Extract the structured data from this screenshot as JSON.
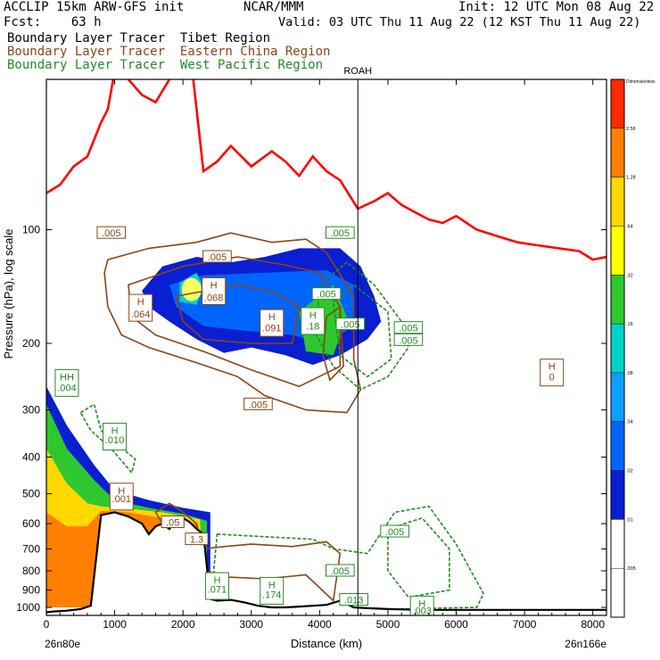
{
  "header": {
    "line1_left": "ACCLIP 15km ARW-GFS init",
    "line1_center": "NCAR/MMM",
    "line1_right": "Init: 12 UTC Mon 08 Aug 22",
    "line2_left": "Fcst:    63 h",
    "line2_right": "Valid: 03 UTC Thu 11 Aug 22 (12 KST Thu 11 Aug 22)",
    "tracers": [
      {
        "label": "Boundary Layer Tracer  Tibet Region",
        "color": "#000000"
      },
      {
        "label": "Boundary Layer Tracer  Eastern China Region",
        "color": "#8B4513"
      },
      {
        "label": "Boundary Layer Tracer  West Pacific Region",
        "color": "#228B22"
      }
    ]
  },
  "chart_data": {
    "type": "cross-section contour",
    "xlabel": "Distance (km)",
    "ylabel": "Pressure (hPa), log scale",
    "y_scale": "log",
    "xlim": [
      0,
      8200
    ],
    "ylim": [
      1050,
      40
    ],
    "x_ticks": [
      "0",
      "1000",
      "2000",
      "3000",
      "4000",
      "5000",
      "6000",
      "7000",
      "8000"
    ],
    "y_ticks": [
      "100",
      "200",
      "300",
      "400",
      "500",
      "600",
      "700",
      "800",
      "900",
      "1000"
    ],
    "start_label": "26n80e",
    "end_label": "26n166e",
    "station": {
      "name": "ROAH",
      "x": 4560
    },
    "colorbar": {
      "title": "Dimensionless",
      "levels": [
        "2.56",
        "1.28",
        ".64",
        ".32",
        ".16",
        ".08",
        ".04",
        ".02",
        ".01",
        ".005"
      ],
      "colors": [
        "#ff2a00",
        "#ff7f00",
        "#ffd800",
        "#ffff00",
        "#2ec82e",
        "#00d2c8",
        "#0aa0ff",
        "#0064ff",
        "#0a1ed2",
        "#ffffff",
        "#ffffff"
      ]
    },
    "tropopause": {
      "color": "#ff0000",
      "x": [
        0,
        200,
        400,
        600,
        800,
        900,
        1000,
        1200,
        1400,
        1600,
        1800,
        2000,
        2150,
        2300,
        2500,
        2700,
        3000,
        3300,
        3500,
        3700,
        3900,
        4100,
        4300,
        4560,
        4800,
        5000,
        5200,
        5400,
        5600,
        5800,
        6000,
        6300,
        6600,
        6900,
        7200,
        7500,
        7800,
        8000,
        8200
      ],
      "p": [
        80,
        76,
        68,
        64,
        52,
        48,
        38,
        40,
        44,
        46,
        40,
        32,
        40,
        70,
        66,
        60,
        68,
        62,
        66,
        72,
        64,
        70,
        74,
        88,
        84,
        80,
        86,
        90,
        94,
        96,
        92,
        100,
        104,
        108,
        110,
        112,
        114,
        120,
        118
      ]
    },
    "terrain": {
      "x": [
        0,
        100,
        300,
        500,
        650,
        800,
        1000,
        1200,
        1400,
        1500,
        1600,
        1700,
        1800,
        1900,
        2000,
        2100,
        2200,
        2300,
        2400,
        2500,
        2700,
        2900,
        3100,
        3300,
        3500,
        3700,
        3900,
        4100,
        4300,
        4500,
        4700,
        5000,
        5500,
        6000,
        6500,
        7000,
        7500,
        8000,
        8200
      ],
      "p": [
        1030,
        1025,
        1020,
        1010,
        990,
        570,
        560,
        575,
        600,
        640,
        610,
        600,
        620,
        590,
        580,
        595,
        620,
        640,
        950,
        960,
        955,
        970,
        990,
        1000,
        1000,
        995,
        990,
        985,
        960,
        1000,
        1005,
        1010,
        1015,
        1015,
        1015,
        1015,
        1015,
        1015,
        1015
      ]
    },
    "tibet_plume": {
      "outer": [
        [
          1400,
          145
        ],
        [
          1700,
          125
        ],
        [
          2200,
          118
        ],
        [
          2700,
          122
        ],
        [
          3200,
          118
        ],
        [
          3700,
          112
        ],
        [
          4300,
          112
        ],
        [
          4600,
          125
        ],
        [
          4800,
          150
        ],
        [
          4900,
          175
        ],
        [
          4700,
          195
        ],
        [
          4300,
          215
        ],
        [
          3900,
          228
        ],
        [
          3500,
          215
        ],
        [
          3000,
          205
        ],
        [
          2600,
          212
        ],
        [
          2200,
          195
        ],
        [
          1800,
          175
        ],
        [
          1500,
          160
        ]
      ],
      "mid": [
        [
          1800,
          140
        ],
        [
          2300,
          132
        ],
        [
          3200,
          130
        ],
        [
          4100,
          128
        ],
        [
          4500,
          140
        ],
        [
          4500,
          180
        ],
        [
          4100,
          200
        ],
        [
          3600,
          190
        ],
        [
          2900,
          185
        ],
        [
          2300,
          180
        ],
        [
          1900,
          160
        ]
      ],
      "inner": [
        [
          3700,
          165
        ],
        [
          4200,
          140
        ],
        [
          4400,
          170
        ],
        [
          4200,
          215
        ],
        [
          3800,
          210
        ]
      ],
      "hot": [
        [
          1950,
          138
        ],
        [
          2200,
          130
        ],
        [
          2300,
          142
        ],
        [
          2200,
          158
        ],
        [
          1950,
          155
        ]
      ]
    },
    "surface_fill": [
      {
        "color": "#0a1ed2",
        "pts": [
          [
            0,
            260
          ],
          [
            300,
            330
          ],
          [
            700,
            420
          ],
          [
            1000,
            490
          ],
          [
            1500,
            520
          ],
          [
            2000,
            545
          ],
          [
            2400,
            560
          ],
          [
            2400,
            1000
          ],
          [
            0,
            1000
          ]
        ]
      },
      {
        "color": "#2ec82e",
        "pts": [
          [
            0,
            290
          ],
          [
            300,
            380
          ],
          [
            700,
            460
          ],
          [
            1000,
            520
          ],
          [
            1500,
            545
          ],
          [
            2000,
            565
          ],
          [
            2350,
            590
          ],
          [
            2350,
            1000
          ],
          [
            0,
            1000
          ]
        ]
      },
      {
        "color": "#ffd800",
        "pts": [
          [
            0,
            380
          ],
          [
            300,
            470
          ],
          [
            600,
            530
          ],
          [
            800,
            540
          ],
          [
            1200,
            548
          ],
          [
            1700,
            560
          ],
          [
            2250,
            585
          ],
          [
            2300,
            1000
          ],
          [
            0,
            1000
          ]
        ]
      },
      {
        "color": "#ff7f00",
        "pts": [
          [
            0,
            560
          ],
          [
            300,
            610
          ],
          [
            600,
            610
          ],
          [
            800,
            555
          ],
          [
            1200,
            560
          ],
          [
            1700,
            580
          ],
          [
            2200,
            600
          ],
          [
            2300,
            1000
          ],
          [
            0,
            1000
          ]
        ]
      }
    ],
    "brown_contours": [
      [
        [
          900,
          120
        ],
        [
          1500,
          112
        ],
        [
          2200,
          108
        ],
        [
          2700,
          102
        ],
        [
          3300,
          108
        ],
        [
          3800,
          106
        ],
        [
          4100,
          115
        ],
        [
          4500,
          150
        ],
        [
          4500,
          220
        ],
        [
          4600,
          265
        ],
        [
          4400,
          305
        ],
        [
          3800,
          300
        ],
        [
          3200,
          275
        ],
        [
          2800,
          245
        ],
        [
          2200,
          225
        ],
        [
          1500,
          205
        ],
        [
          1100,
          190
        ],
        [
          900,
          160
        ],
        [
          850,
          130
        ]
      ],
      [
        [
          1200,
          140
        ],
        [
          2000,
          125
        ],
        [
          2800,
          118
        ],
        [
          3500,
          124
        ],
        [
          4000,
          130
        ],
        [
          4300,
          160
        ],
        [
          4300,
          230
        ],
        [
          3700,
          260
        ],
        [
          3000,
          235
        ],
        [
          2300,
          210
        ],
        [
          1600,
          190
        ],
        [
          1250,
          170
        ]
      ],
      [
        [
          1900,
          150
        ],
        [
          2800,
          140
        ],
        [
          3300,
          146
        ],
        [
          3700,
          160
        ],
        [
          3600,
          200
        ],
        [
          3000,
          200
        ],
        [
          2300,
          195
        ],
        [
          2000,
          175
        ]
      ],
      [
        [
          4100,
          170
        ],
        [
          4300,
          160
        ],
        [
          4350,
          230
        ],
        [
          4150,
          250
        ],
        [
          4050,
          215
        ]
      ],
      [
        [
          1600,
          560
        ],
        [
          1800,
          530
        ],
        [
          2000,
          560
        ],
        [
          2200,
          600
        ],
        [
          2300,
          720
        ],
        [
          2050,
          650
        ],
        [
          1750,
          620
        ]
      ],
      [
        [
          2300,
          700
        ],
        [
          2600,
          690
        ],
        [
          3000,
          680
        ],
        [
          3600,
          690
        ],
        [
          4100,
          670
        ],
        [
          4300,
          720
        ],
        [
          4200,
          960
        ],
        [
          3800,
          820
        ],
        [
          3200,
          840
        ],
        [
          2600,
          830
        ],
        [
          2350,
          800
        ]
      ]
    ],
    "green_contours": [
      [
        [
          4000,
          140
        ],
        [
          4400,
          122
        ],
        [
          4800,
          140
        ],
        [
          5200,
          175
        ],
        [
          5300,
          205
        ],
        [
          5000,
          245
        ],
        [
          4600,
          265
        ],
        [
          4200,
          230
        ],
        [
          3950,
          190
        ]
      ],
      [
        [
          4200,
          155
        ],
        [
          4500,
          140
        ],
        [
          5000,
          165
        ],
        [
          5050,
          220
        ],
        [
          4700,
          245
        ],
        [
          4300,
          215
        ]
      ],
      [
        [
          500,
          305
        ],
        [
          700,
          290
        ],
        [
          800,
          340
        ],
        [
          1300,
          405
        ],
        [
          1250,
          440
        ],
        [
          950,
          380
        ],
        [
          650,
          340
        ]
      ],
      [
        [
          2500,
          640
        ],
        [
          3200,
          650
        ],
        [
          3900,
          660
        ],
        [
          4200,
          700
        ],
        [
          4700,
          720
        ],
        [
          5100,
          560
        ],
        [
          5600,
          540
        ],
        [
          6000,
          680
        ],
        [
          6400,
          920
        ],
        [
          6300,
          1000
        ],
        [
          5000,
          1010
        ],
        [
          3200,
          1000
        ],
        [
          2600,
          960
        ],
        [
          2450,
          800
        ]
      ],
      [
        [
          5000,
          620
        ],
        [
          5500,
          580
        ],
        [
          5900,
          700
        ],
        [
          5900,
          900
        ],
        [
          5300,
          940
        ],
        [
          5000,
          800
        ]
      ]
    ],
    "labels": [
      {
        "text": ".005",
        "x": 950,
        "p": 102,
        "color": "#8B4513",
        "kind": "box"
      },
      {
        "text": ".005",
        "x": 2500,
        "p": 118,
        "color": "#8B4513",
        "kind": "box"
      },
      {
        "text": ".005",
        "x": 4300,
        "p": 102,
        "color": "#228B22",
        "kind": "box"
      },
      {
        "text": "H",
        "x": 1380,
        "p": 155,
        "color": "#8B4513",
        "kind": "hi"
      },
      {
        "text": ".064",
        "x": 1380,
        "p": 167,
        "color": "#8B4513",
        "kind": "val"
      },
      {
        "text": "H",
        "x": 2450,
        "p": 140,
        "color": "#8B4513",
        "kind": "hi"
      },
      {
        "text": ".068",
        "x": 2450,
        "p": 151,
        "color": "#8B4513",
        "kind": "val"
      },
      {
        "text": "H",
        "x": 3300,
        "p": 170,
        "color": "#8B4513",
        "kind": "hi"
      },
      {
        "text": ".091",
        "x": 3300,
        "p": 182,
        "color": "#8B4513",
        "kind": "val"
      },
      {
        "text": "H",
        "x": 3900,
        "p": 168,
        "color": "#228B22",
        "kind": "hi"
      },
      {
        "text": ".18",
        "x": 3900,
        "p": 180,
        "color": "#228B22",
        "kind": "val"
      },
      {
        "text": ".005",
        "x": 4100,
        "p": 148,
        "color": "#228B22",
        "kind": "box"
      },
      {
        "text": ".005",
        "x": 4450,
        "p": 178,
        "color": "#228B22",
        "kind": "box"
      },
      {
        "text": ".005",
        "x": 5300,
        "p": 182,
        "color": "#228B22",
        "kind": "box"
      },
      {
        "text": ".005",
        "x": 5300,
        "p": 196,
        "color": "#228B22",
        "kind": "box"
      },
      {
        "text": ".005",
        "x": 3100,
        "p": 290,
        "color": "#8B4513",
        "kind": "box"
      },
      {
        "text": "H",
        "x": 7400,
        "p": 230,
        "color": "#8B4513",
        "kind": "hi"
      },
      {
        "text": "0",
        "x": 7400,
        "p": 245,
        "color": "#8B4513",
        "kind": "val"
      },
      {
        "text": "HH",
        "x": 300,
        "p": 245,
        "color": "#228B22",
        "kind": "hi"
      },
      {
        "text": ".004",
        "x": 300,
        "p": 262,
        "color": "#228B22",
        "kind": "val"
      },
      {
        "text": "H",
        "x": 1000,
        "p": 340,
        "color": "#228B22",
        "kind": "hi"
      },
      {
        "text": ".010",
        "x": 1000,
        "p": 360,
        "color": "#228B22",
        "kind": "val"
      },
      {
        "text": "H",
        "x": 1100,
        "p": 490,
        "color": "#8B4513",
        "kind": "hi"
      },
      {
        "text": ".001",
        "x": 1100,
        "p": 515,
        "color": "#8B4513",
        "kind": "val"
      },
      {
        "text": ".05",
        "x": 1850,
        "p": 595,
        "color": "#8B4513",
        "kind": "box"
      },
      {
        "text": "1.3",
        "x": 2200,
        "p": 660,
        "color": "#8B4513",
        "kind": "box"
      },
      {
        "text": "H",
        "x": 2500,
        "p": 845,
        "color": "#228B22",
        "kind": "hi"
      },
      {
        "text": ".071",
        "x": 2500,
        "p": 895,
        "color": "#228B22",
        "kind": "val"
      },
      {
        "text": "H",
        "x": 3300,
        "p": 870,
        "color": "#228B22",
        "kind": "hi"
      },
      {
        "text": ".174",
        "x": 3300,
        "p": 925,
        "color": "#228B22",
        "kind": "val"
      },
      {
        "text": ".005",
        "x": 4300,
        "p": 800,
        "color": "#228B22",
        "kind": "box"
      },
      {
        "text": ".013",
        "x": 4500,
        "p": 955,
        "color": "#228B22",
        "kind": "box"
      },
      {
        "text": ".005",
        "x": 5100,
        "p": 630,
        "color": "#228B22",
        "kind": "box"
      },
      {
        "text": "H",
        "x": 5500,
        "p": 975,
        "color": "#228B22",
        "kind": "hi"
      },
      {
        "text": ".003",
        "x": 5500,
        "p": 1020,
        "color": "#228B22",
        "kind": "val"
      }
    ]
  }
}
